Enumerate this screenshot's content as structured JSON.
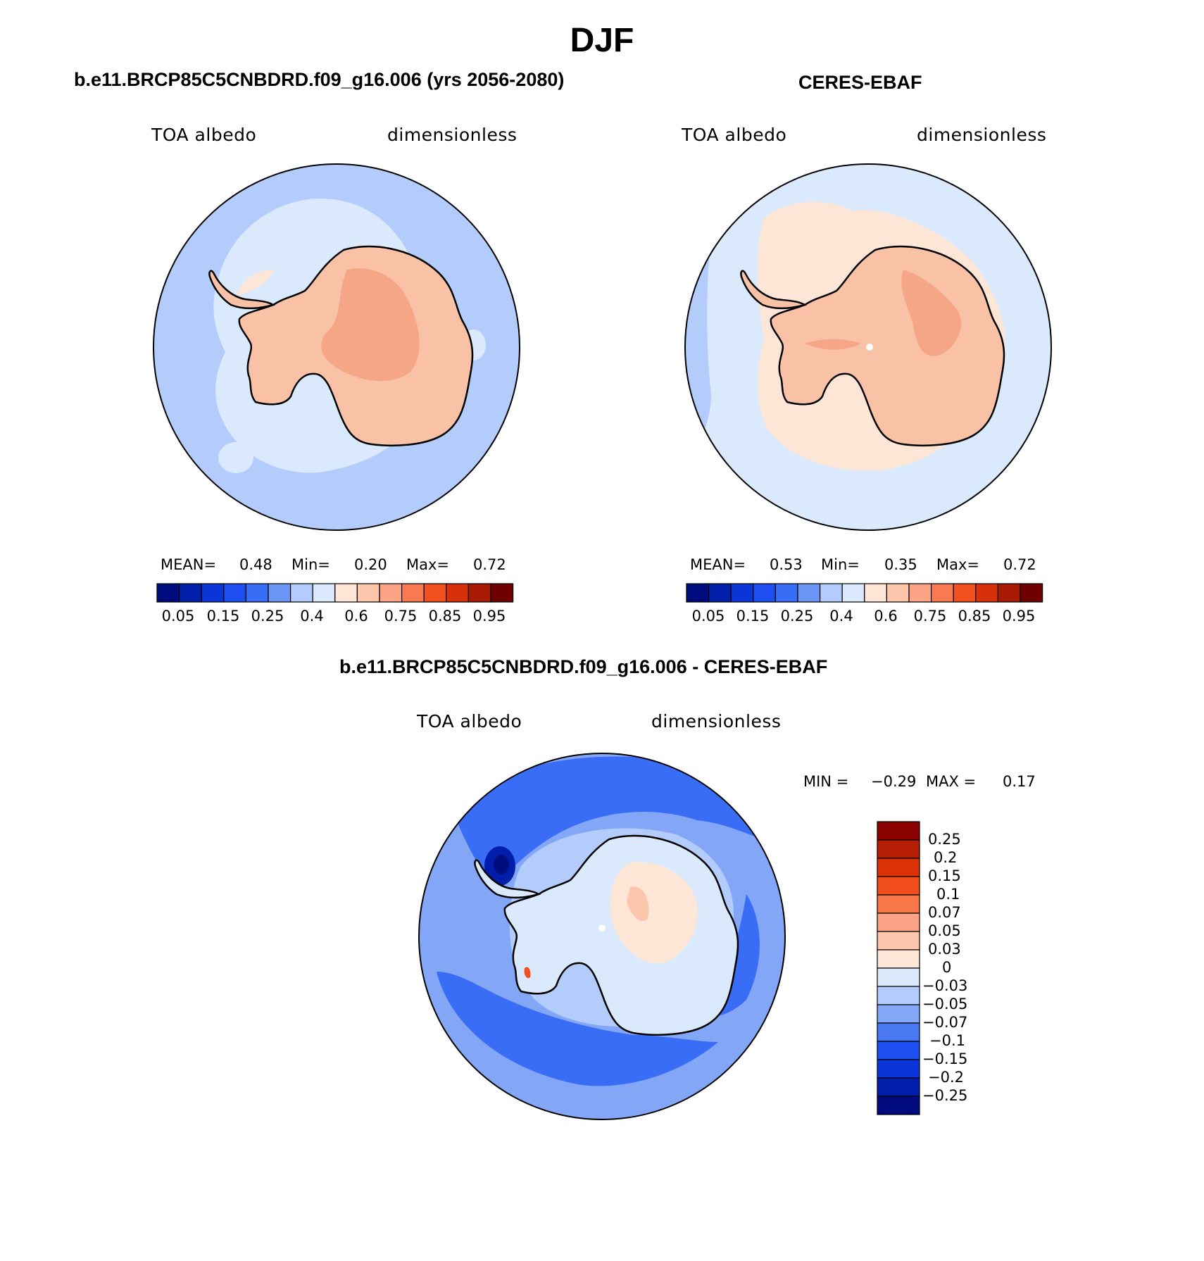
{
  "title": "DJF",
  "colors": {
    "scale": [
      "#000c7d",
      "#001eaa",
      "#0a35d8",
      "#1c4ef0",
      "#3a6df5",
      "#6d95f5",
      "#b3ccfb",
      "#dbe9fd",
      "#fde6d6",
      "#fcc6ad",
      "#fba384",
      "#f97a50",
      "#f2501f",
      "#d8300a",
      "#a81a03",
      "#6f0000"
    ],
    "land": "#f9c2a6",
    "land_high": "#f5a686",
    "ocean_low": "#b3ccfb",
    "ocean_pale": "#dbe9fd",
    "cream": "#fde6d6"
  },
  "panels": [
    {
      "id": "model",
      "title": "b.e11.BRCP85C5CNBDRD.f09_g16.006 (yrs 2056-2080)",
      "variable": "TOA albedo",
      "units": "dimensionless",
      "stats": {
        "mean_label": "MEAN=",
        "mean": "0.48",
        "min_label": "Min=",
        "min": "0.20",
        "max_label": "Max=",
        "max": "0.72"
      },
      "colorbar_ticks": [
        "0.05",
        "0.15",
        "0.25",
        "0.4",
        "0.6",
        "0.75",
        "0.85",
        "0.95"
      ]
    },
    {
      "id": "obs",
      "title": "CERES-EBAF",
      "variable": "TOA albedo",
      "units": "dimensionless",
      "stats": {
        "mean_label": "MEAN=",
        "mean": "0.53",
        "min_label": "Min=",
        "min": "0.35",
        "max_label": "Max=",
        "max": "0.72"
      },
      "colorbar_ticks": [
        "0.05",
        "0.15",
        "0.25",
        "0.4",
        "0.6",
        "0.75",
        "0.85",
        "0.95"
      ]
    }
  ],
  "difference": {
    "title": "b.e11.BRCP85C5CNBDRD.f09_g16.006 - CERES-EBAF",
    "variable": "TOA albedo",
    "units": "dimensionless",
    "min_label": "MIN =",
    "min": "−0.29",
    "max_label": "MAX =",
    "max": "0.17",
    "colorbar_ticks": [
      "0.25",
      "0.2",
      "0.15",
      "0.1",
      "0.07",
      "0.05",
      "0.03",
      "0",
      "−0.03",
      "−0.05",
      "−0.07",
      "−0.1",
      "−0.15",
      "−0.2",
      "−0.25"
    ],
    "colorbar_colors": [
      "#8b0000",
      "#b51e05",
      "#dc3208",
      "#f24e1c",
      "#f8784a",
      "#fba384",
      "#fcc6ad",
      "#fde6d6",
      "#dbe9fd",
      "#b3ccfb",
      "#83a6f7",
      "#4a78f3",
      "#1c4ef0",
      "#0a35d8",
      "#001eaa",
      "#000c7d"
    ]
  }
}
